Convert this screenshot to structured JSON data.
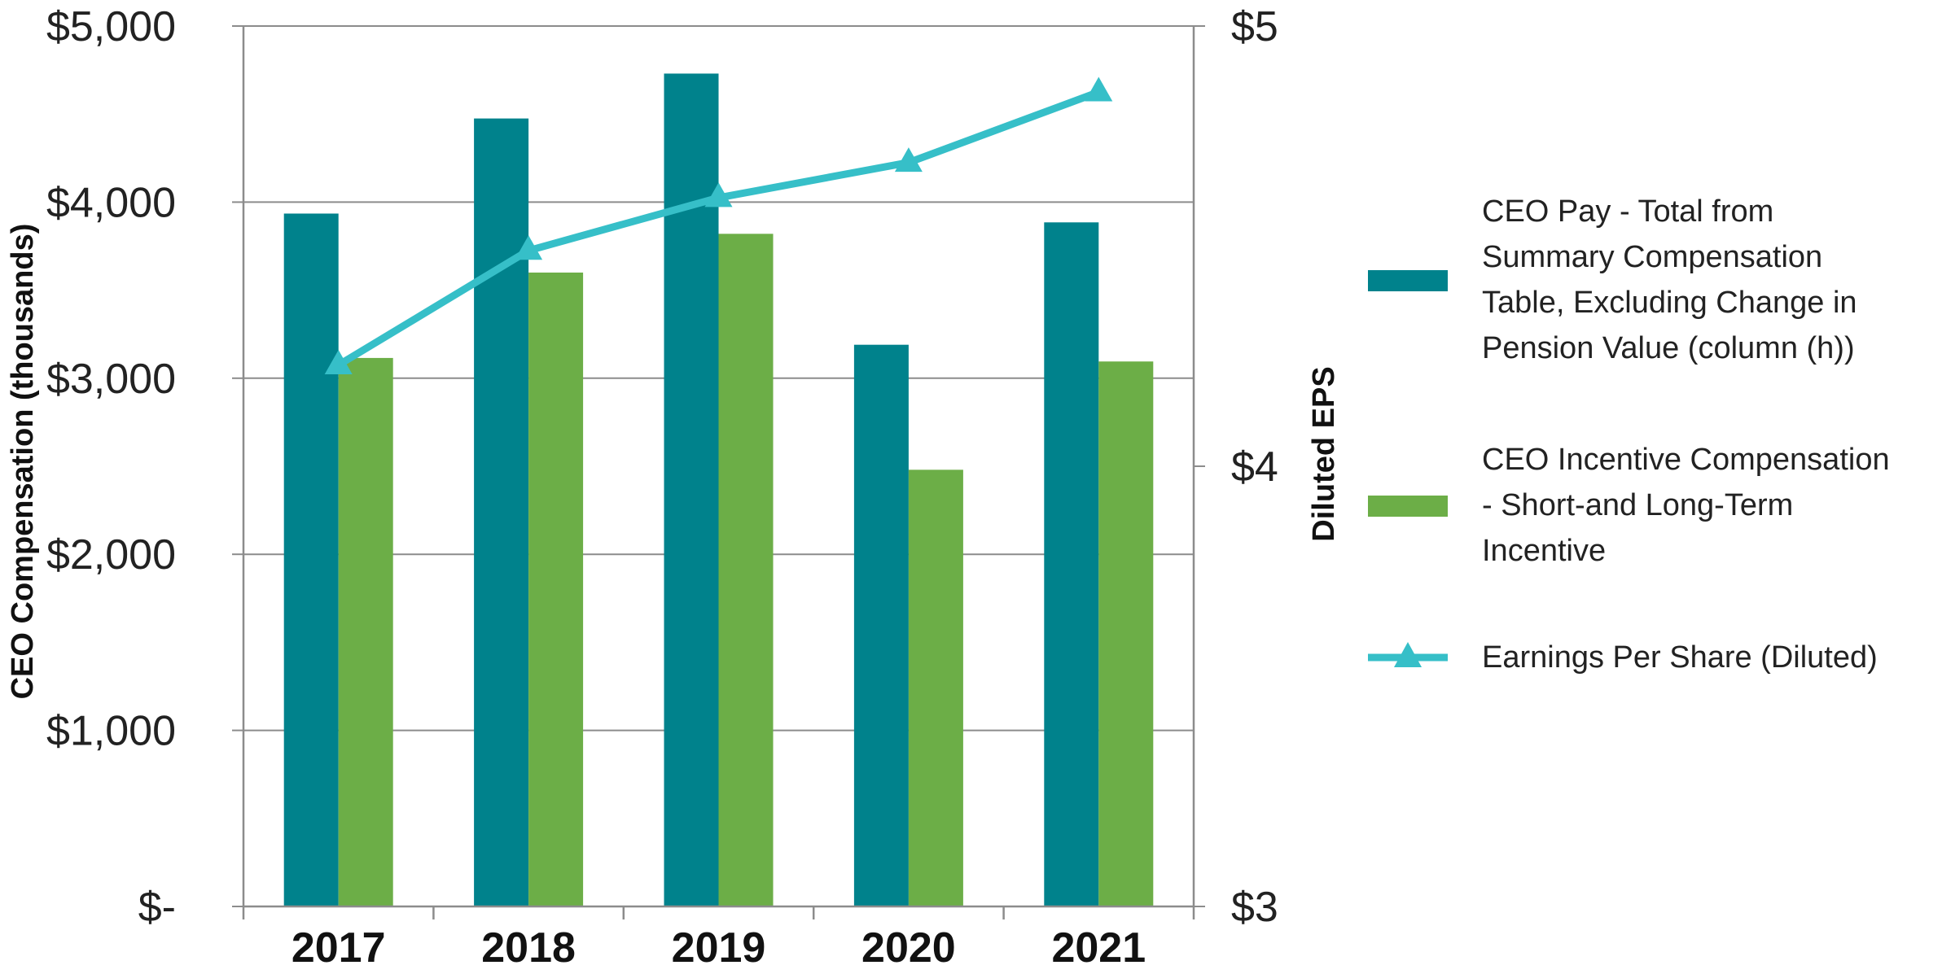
{
  "chart_data": {
    "type": "bar",
    "categories": [
      "2017",
      "2018",
      "2019",
      "2020",
      "2021"
    ],
    "series": [
      {
        "name": "CEO Pay - Total from Summary Compensation Table, Excluding Change in Pension Value (column (h))",
        "legend_lines": [
          "CEO Pay - Total from",
          "Summary Compensation",
          "Table, Excluding Change in",
          "Pension Value (column (h))"
        ],
        "kind": "bar",
        "axis": "left",
        "color": "#00828C",
        "values": [
          3935,
          4475,
          4730,
          3190,
          3885
        ]
      },
      {
        "name": "CEO Incentive Compensation - Short-and Long-Term Incentive",
        "legend_lines": [
          "CEO Incentive Compensation",
          "- Short-and Long-Term",
          "Incentive"
        ],
        "kind": "bar",
        "axis": "left",
        "color": "#6CAE47",
        "values": [
          3115,
          3600,
          3820,
          2480,
          3095
        ]
      },
      {
        "name": "Earnings Per Share (Diluted)",
        "legend_lines": [
          "Earnings Per Share (Diluted)"
        ],
        "kind": "line",
        "marker": "triangle",
        "axis": "right",
        "color": "#36BFC8",
        "values": [
          4.23,
          4.49,
          4.61,
          4.69,
          4.85
        ]
      }
    ],
    "left_axis": {
      "label": "CEO Compensation (thousands)",
      "ylim": [
        0,
        5000
      ],
      "ticks": [
        0,
        1000,
        2000,
        3000,
        4000,
        5000
      ],
      "tick_labels": [
        "$-",
        "$1,000",
        "$2,000",
        "$3,000",
        "$4,000",
        "$5,000"
      ]
    },
    "right_axis": {
      "label": "Diluted EPS",
      "ylim": [
        3,
        5
      ],
      "ticks": [
        3,
        4,
        5
      ],
      "tick_labels": [
        "$3",
        "$4",
        "$5"
      ]
    },
    "grid": true,
    "legend_position": "right"
  }
}
